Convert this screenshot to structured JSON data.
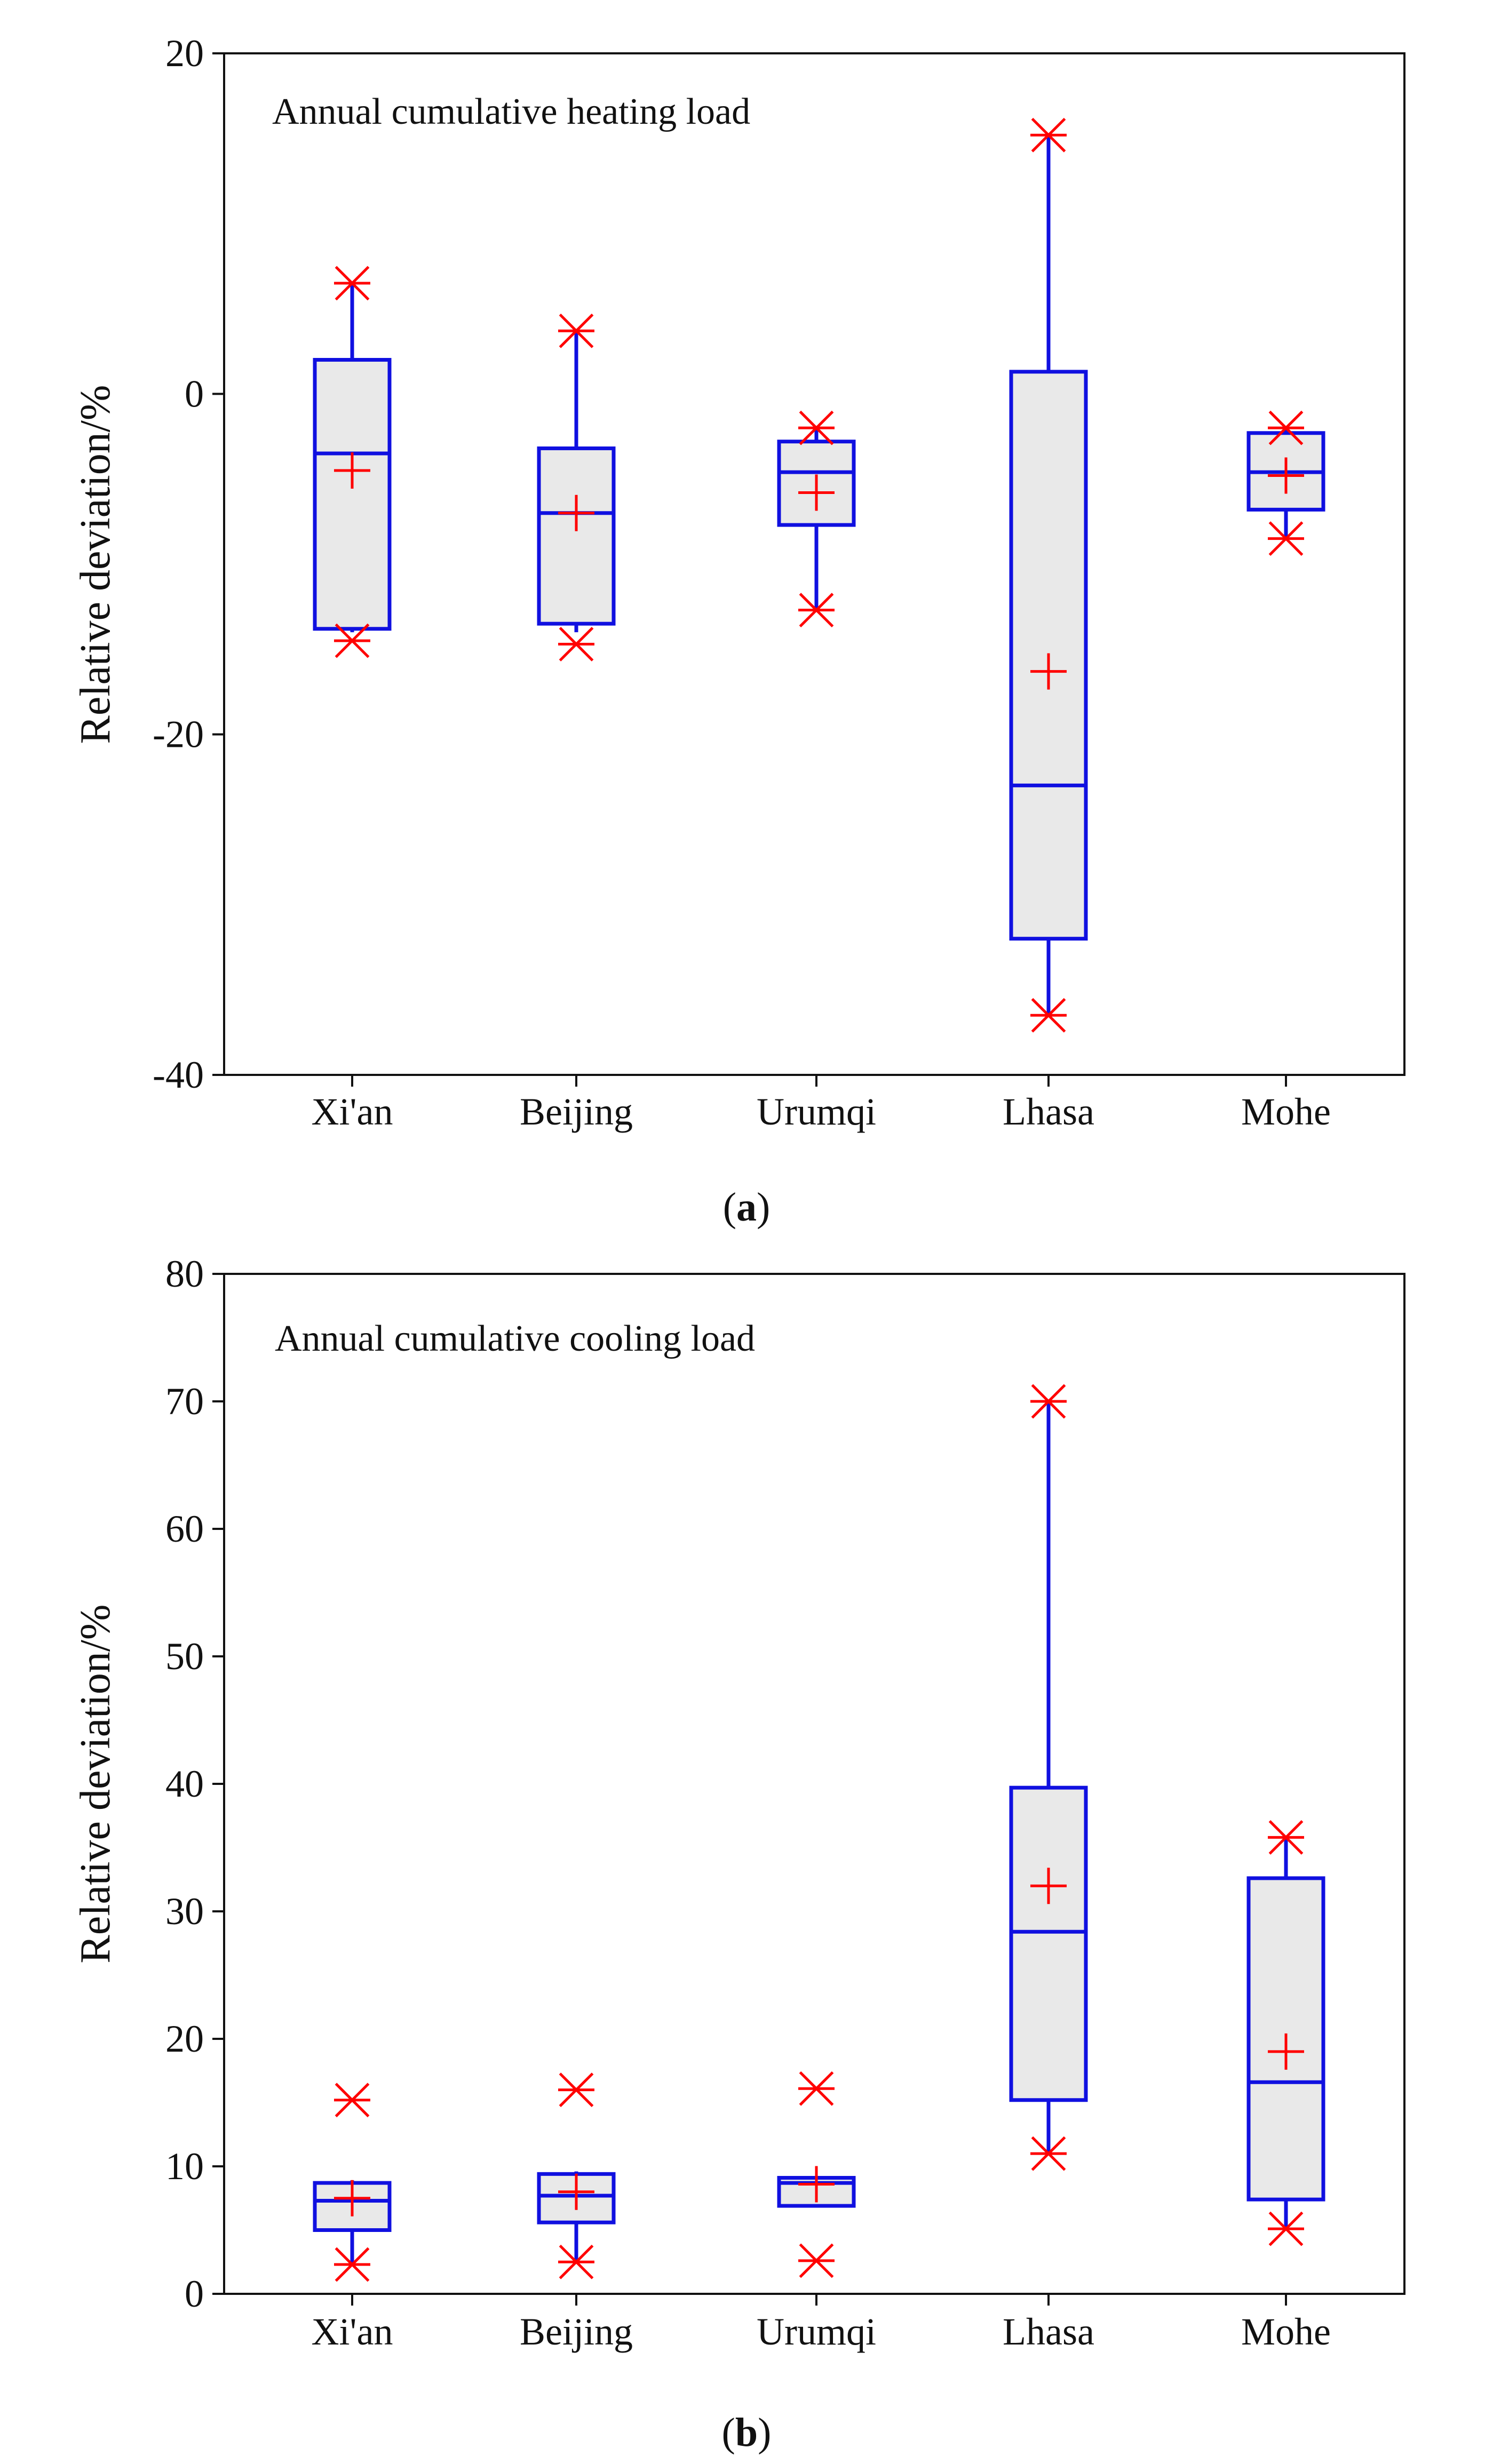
{
  "colors": {
    "box_stroke": "#1010e0",
    "box_fill": "#e9e9e9",
    "marker": "#ff0000",
    "axis": "#111111"
  },
  "chart_data": [
    {
      "type": "box",
      "title": "Annual cumulative heating load",
      "xlabel": "",
      "ylabel": "Relative deviation/%",
      "ylim": [
        -40,
        20
      ],
      "yticks": [
        -40,
        -20,
        0,
        20
      ],
      "grid": false,
      "categories": [
        "Xi'an",
        "Beijing",
        "Urumqi",
        "Lhasa",
        "Mohe"
      ],
      "boxes": [
        {
          "category": "Xi'an",
          "whisker_low": -14.0,
          "q1": -13.8,
          "median": -3.5,
          "q3": 2.0,
          "whisker_high": 6.5,
          "mean": -4.5,
          "min": -14.5,
          "max": 6.5
        },
        {
          "category": "Beijing",
          "whisker_low": -14.0,
          "q1": -13.5,
          "median": -7.0,
          "q3": -3.2,
          "whisker_high": 3.7,
          "mean": -7.0,
          "min": -14.7,
          "max": 3.7
        },
        {
          "category": "Urumqi",
          "whisker_low": -12.7,
          "q1": -7.7,
          "median": -4.6,
          "q3": -2.8,
          "whisker_high": -2.0,
          "mean": -5.8,
          "min": -12.7,
          "max": -2.0
        },
        {
          "category": "Lhasa",
          "whisker_low": -36.5,
          "q1": -32.0,
          "median": -23.0,
          "q3": 1.3,
          "whisker_high": 15.2,
          "mean": -16.3,
          "min": -36.5,
          "max": 15.2
        },
        {
          "category": "Mohe",
          "whisker_low": -8.5,
          "q1": -6.8,
          "median": -4.6,
          "q3": -2.3,
          "whisker_high": -2.0,
          "mean": -4.8,
          "min": -8.5,
          "max": -2.0
        }
      ],
      "caption": {
        "open": "(",
        "letter": "a",
        "close": ")"
      }
    },
    {
      "type": "box",
      "title": "Annual cumulative cooling load",
      "xlabel": "",
      "ylabel": "Relative deviation/%",
      "ylim": [
        0,
        80
      ],
      "yticks": [
        0,
        10,
        20,
        30,
        40,
        50,
        60,
        70,
        80
      ],
      "grid": false,
      "categories": [
        "Xi'an",
        "Beijing",
        "Urumqi",
        "Lhasa",
        "Mohe"
      ],
      "boxes": [
        {
          "category": "Xi'an",
          "whisker_low": 2.3,
          "q1": 5.0,
          "median": 7.3,
          "q3": 8.7,
          "whisker_high": 8.9,
          "mean": 7.5,
          "min": 2.3,
          "max": 15.2
        },
        {
          "category": "Beijing",
          "whisker_low": 2.5,
          "q1": 5.6,
          "median": 7.7,
          "q3": 9.4,
          "whisker_high": 9.6,
          "mean": 8.0,
          "min": 2.5,
          "max": 16.0
        },
        {
          "category": "Urumqi",
          "whisker_low": 6.9,
          "q1": 6.9,
          "median": 8.7,
          "q3": 9.1,
          "whisker_high": 9.1,
          "mean": 8.6,
          "min": 2.6,
          "max": 16.1
        },
        {
          "category": "Lhasa",
          "whisker_low": 11.0,
          "q1": 15.2,
          "median": 28.4,
          "q3": 39.7,
          "whisker_high": 70.0,
          "mean": 32.0,
          "min": 11.0,
          "max": 70.0
        },
        {
          "category": "Mohe",
          "whisker_low": 5.1,
          "q1": 7.4,
          "median": 16.6,
          "q3": 32.6,
          "whisker_high": 35.8,
          "mean": 19.0,
          "min": 5.1,
          "max": 35.8
        }
      ],
      "caption": {
        "open": "(",
        "letter": "b",
        "close": ")"
      }
    }
  ]
}
